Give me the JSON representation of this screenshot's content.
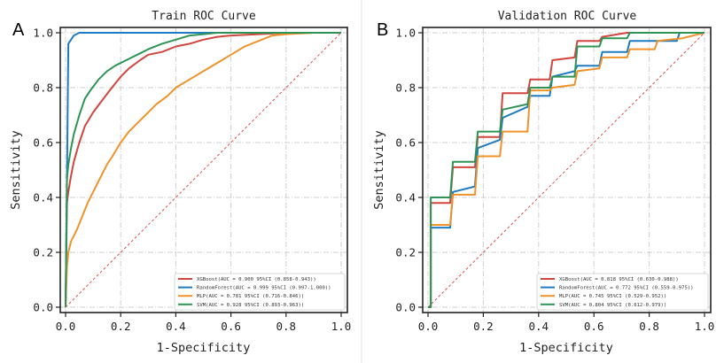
{
  "chart_data": [
    {
      "type": "line",
      "panel_label": "A",
      "title": "Train ROC Curve",
      "xlabel": "1-Specificity",
      "ylabel": "Sensitivity",
      "xlim": [
        0,
        1
      ],
      "ylim": [
        0,
        1
      ],
      "xticks": [
        "0.0",
        "0.2",
        "0.4",
        "0.6",
        "0.8",
        "1.0"
      ],
      "yticks": [
        "0.0",
        "0.2",
        "0.4",
        "0.6",
        "0.8",
        "1.0"
      ],
      "grid": true,
      "legend_position": "bottom-right",
      "reference_line": {
        "name": "chance",
        "color": "#d9534f",
        "x": [
          0,
          1
        ],
        "y": [
          0,
          1
        ]
      },
      "series": [
        {
          "name": "XGBoost(AUC = 0.900 95%CI (0.858-0.943))",
          "color": "#d0453d",
          "x": [
            0,
            0.005,
            0.01,
            0.02,
            0.03,
            0.05,
            0.07,
            0.1,
            0.13,
            0.16,
            0.2,
            0.23,
            0.27,
            0.3,
            0.35,
            0.4,
            0.45,
            0.5,
            0.55,
            0.6,
            0.7,
            0.8,
            0.9,
            1.0
          ],
          "y": [
            0,
            0.38,
            0.42,
            0.48,
            0.53,
            0.6,
            0.66,
            0.71,
            0.75,
            0.79,
            0.84,
            0.87,
            0.9,
            0.92,
            0.93,
            0.95,
            0.96,
            0.975,
            0.985,
            0.99,
            0.995,
            1.0,
            1.0,
            1.0
          ]
        },
        {
          "name": "RandomForest(AUC = 0.999 95%CI (0.997-1.000))",
          "color": "#1f7bc0",
          "x": [
            0,
            0.005,
            0.01,
            0.02,
            0.03,
            0.05,
            1.0
          ],
          "y": [
            0,
            0.47,
            0.96,
            0.975,
            0.99,
            1.0,
            1.0
          ]
        },
        {
          "name": "MLP(AUC = 0.781 95%CI (0.716-0.846))",
          "color": "#f0922b",
          "x": [
            0,
            0.005,
            0.01,
            0.02,
            0.04,
            0.06,
            0.08,
            0.1,
            0.12,
            0.15,
            0.17,
            0.2,
            0.23,
            0.27,
            0.3,
            0.33,
            0.37,
            0.4,
            0.45,
            0.5,
            0.55,
            0.6,
            0.65,
            0.7,
            0.75,
            0.8,
            0.9,
            1.0
          ],
          "y": [
            0,
            0.15,
            0.2,
            0.24,
            0.28,
            0.33,
            0.38,
            0.42,
            0.46,
            0.52,
            0.55,
            0.6,
            0.64,
            0.68,
            0.71,
            0.74,
            0.77,
            0.8,
            0.83,
            0.86,
            0.89,
            0.92,
            0.95,
            0.97,
            0.99,
            0.995,
            1.0,
            1.0
          ]
        },
        {
          "name": "SVM(AUC = 0.928 95%CI (0.893-0.963))",
          "color": "#2e9455",
          "x": [
            0,
            0.005,
            0.01,
            0.02,
            0.03,
            0.05,
            0.07,
            0.09,
            0.12,
            0.15,
            0.18,
            0.22,
            0.26,
            0.3,
            0.35,
            0.4,
            0.45,
            0.5,
            0.55,
            0.6,
            0.8,
            1.0
          ],
          "y": [
            0,
            0.47,
            0.52,
            0.58,
            0.63,
            0.7,
            0.76,
            0.79,
            0.83,
            0.86,
            0.88,
            0.9,
            0.92,
            0.94,
            0.96,
            0.975,
            0.99,
            0.995,
            1.0,
            1.0,
            1.0,
            1.0
          ]
        }
      ]
    },
    {
      "type": "line",
      "panel_label": "B",
      "title": "Validation ROC Curve",
      "xlabel": "1-Specificity",
      "ylabel": "Sensitivity",
      "xlim": [
        0,
        1
      ],
      "ylim": [
        0,
        1
      ],
      "xticks": [
        "0.0",
        "0.2",
        "0.4",
        "0.6",
        "0.8",
        "1.0"
      ],
      "yticks": [
        "0.0",
        "0.2",
        "0.4",
        "0.6",
        "0.8",
        "1.0"
      ],
      "grid": true,
      "legend_position": "bottom-right",
      "reference_line": {
        "name": "chance",
        "color": "#d9534f",
        "x": [
          0,
          1
        ],
        "y": [
          0,
          1
        ]
      },
      "series": [
        {
          "name": "XGBoost(AUC = 0.818 95%CI (0.630-0.988))",
          "color": "#d0453d",
          "x": [
            0,
            0.01,
            0.01,
            0.08,
            0.09,
            0.17,
            0.18,
            0.26,
            0.27,
            0.36,
            0.37,
            0.44,
            0.45,
            0.53,
            0.54,
            0.62,
            0.63,
            0.72,
            1.0
          ],
          "y": [
            0,
            0.0,
            0.38,
            0.38,
            0.51,
            0.51,
            0.62,
            0.62,
            0.78,
            0.78,
            0.83,
            0.83,
            0.9,
            0.91,
            0.97,
            0.97,
            0.985,
            1.0,
            1.0
          ]
        },
        {
          "name": "RandomForest(AUC = 0.772 95%CI (0.559-0.975))",
          "color": "#1f7bc0",
          "x": [
            0,
            0.01,
            0.01,
            0.08,
            0.09,
            0.17,
            0.18,
            0.26,
            0.27,
            0.36,
            0.37,
            0.44,
            0.45,
            0.53,
            0.54,
            0.62,
            0.63,
            0.72,
            0.73,
            0.9,
            0.91,
            1.0
          ],
          "y": [
            0,
            0.0,
            0.29,
            0.29,
            0.42,
            0.44,
            0.58,
            0.61,
            0.69,
            0.73,
            0.77,
            0.77,
            0.84,
            0.86,
            0.88,
            0.88,
            0.93,
            0.93,
            0.97,
            0.97,
            1.0,
            1.0
          ]
        },
        {
          "name": "MLP(AUC = 0.745 95%CI (0.529-0.952))",
          "color": "#f0922b",
          "x": [
            0,
            0.01,
            0.01,
            0.08,
            0.09,
            0.17,
            0.18,
            0.26,
            0.27,
            0.36,
            0.37,
            0.44,
            0.45,
            0.53,
            0.54,
            0.62,
            0.63,
            0.72,
            0.73,
            0.82,
            0.83,
            0.92,
            1.0
          ],
          "y": [
            0,
            0.0,
            0.3,
            0.3,
            0.41,
            0.41,
            0.55,
            0.55,
            0.64,
            0.64,
            0.79,
            0.79,
            0.8,
            0.81,
            0.86,
            0.87,
            0.91,
            0.91,
            0.94,
            0.94,
            0.97,
            0.98,
            1.0
          ]
        },
        {
          "name": "SVM(AUC = 0.804 95%CI (0.612-0.979))",
          "color": "#2e9455",
          "x": [
            0,
            0.01,
            0.01,
            0.08,
            0.09,
            0.17,
            0.18,
            0.26,
            0.27,
            0.36,
            0.37,
            0.44,
            0.45,
            0.53,
            0.54,
            0.62,
            0.63,
            0.72,
            0.73,
            1.0
          ],
          "y": [
            0,
            0.0,
            0.4,
            0.4,
            0.53,
            0.53,
            0.64,
            0.64,
            0.72,
            0.74,
            0.8,
            0.8,
            0.84,
            0.84,
            0.95,
            0.95,
            0.98,
            0.98,
            1.0,
            1.0
          ]
        }
      ]
    }
  ]
}
